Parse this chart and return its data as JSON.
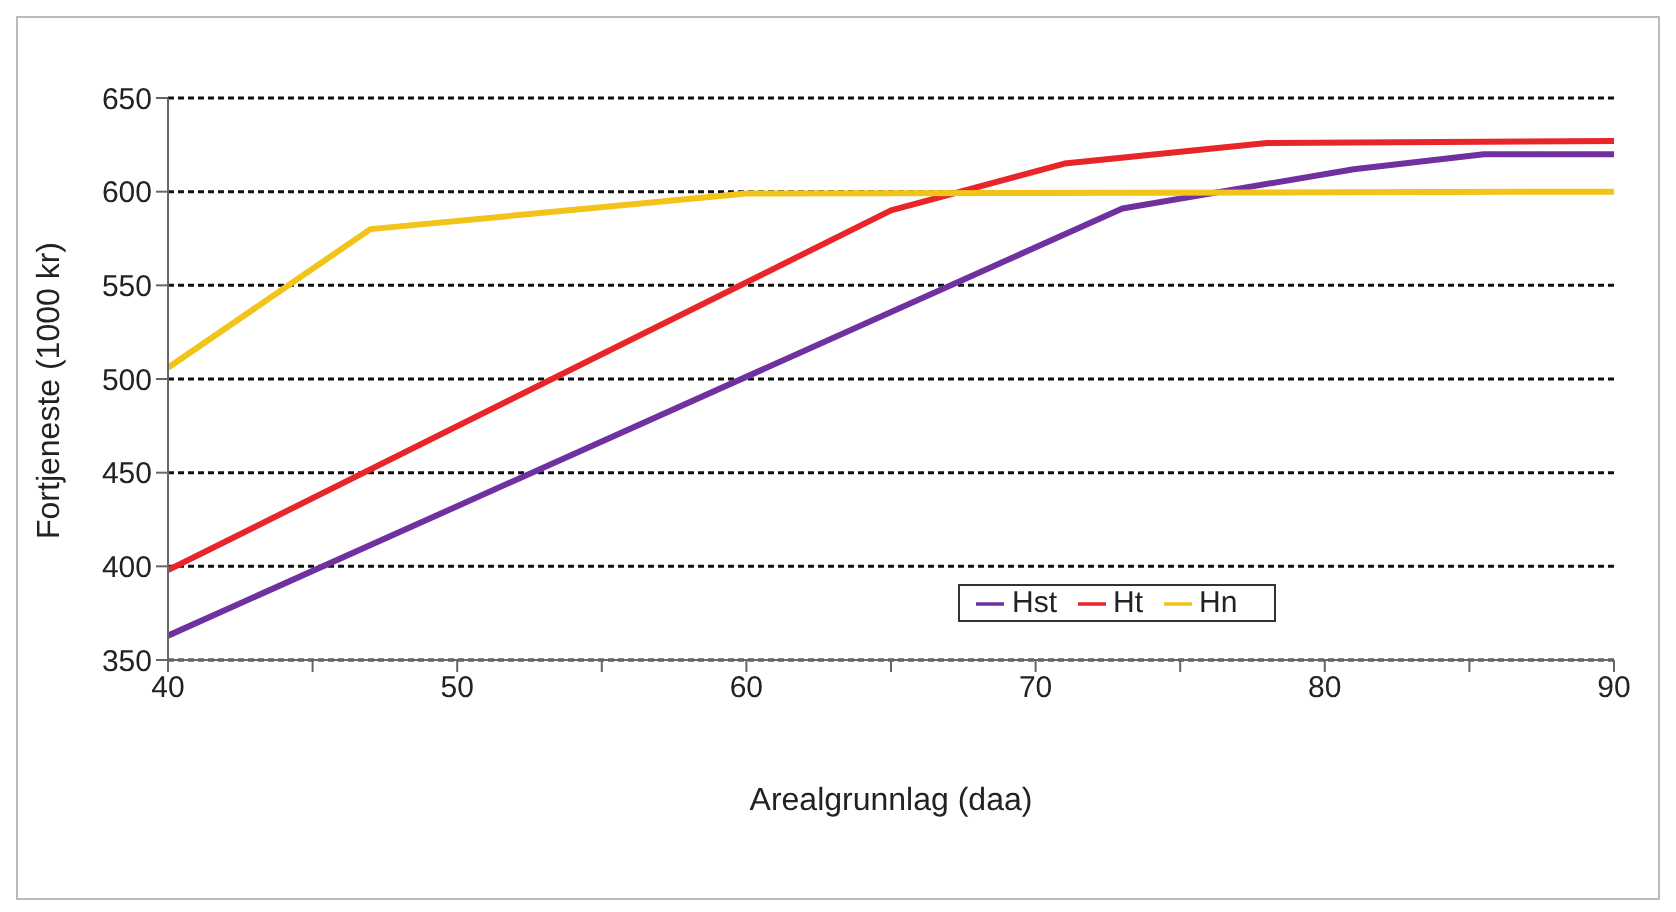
{
  "chart_data": {
    "type": "line",
    "xlabel": "Arealgrunnlag (daa)",
    "ylabel": "Fortjeneste (1000 kr)",
    "xlim": [
      40,
      90
    ],
    "xticks": [
      40,
      {
        "value": 45,
        "label": null
      },
      50,
      {
        "value": 55,
        "label": null
      },
      60,
      {
        "value": 65,
        "label": null
      },
      70,
      {
        "value": 75,
        "label": null
      },
      80,
      {
        "value": 85,
        "label": null
      },
      90
    ],
    "ylim": [
      350,
      650
    ],
    "yticks": [
      350,
      400,
      450,
      500,
      550,
      600,
      650
    ],
    "grid": "y",
    "legend": "bottom right",
    "marker": "none",
    "line_style": "solid",
    "series": [
      {
        "name": "Hst",
        "color": "#7030a0",
        "x": [
          40,
          73,
          81,
          85.5,
          90
        ],
        "values": [
          363,
          591,
          612,
          620,
          620
        ]
      },
      {
        "name": "Ht",
        "color": "#e8262a",
        "x": [
          40,
          65,
          71,
          78,
          90
        ],
        "values": [
          398,
          590,
          615,
          626,
          627
        ]
      },
      {
        "name": "Hn",
        "color": "#f2c318",
        "x": [
          40,
          47,
          60,
          90
        ],
        "values": [
          506,
          580,
          599,
          600
        ]
      }
    ]
  }
}
